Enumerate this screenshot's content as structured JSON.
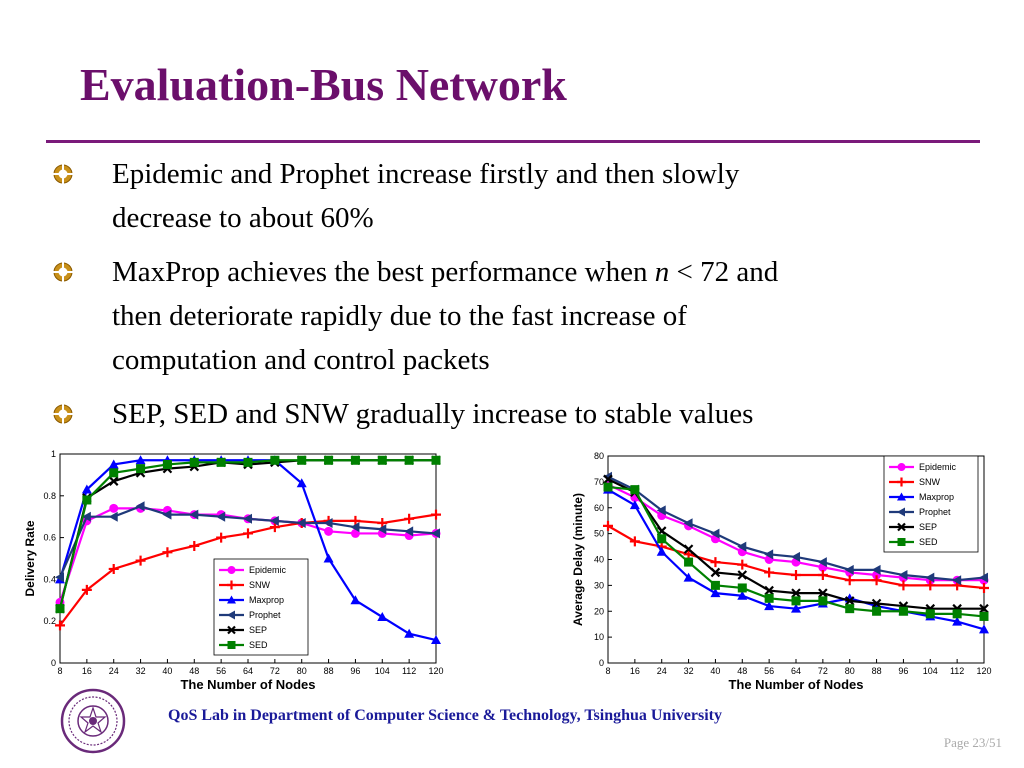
{
  "slide": {
    "title": "Evaluation-Bus Network",
    "bullets": [
      {
        "lines": [
          "Epidemic and Prophet increase firstly and then slowly",
          "decrease to about 60%"
        ]
      },
      {
        "line1_a": "MaxProp achieves the best performance when ",
        "line1_var": "n",
        "line1_b": " < 72 and",
        "lines_rest": [
          "then deteriorate rapidly due to the fast increase of",
          "computation and control packets"
        ]
      },
      {
        "lines": [
          "SEP, SED and SNW gradually increase to stable values"
        ]
      }
    ],
    "footer": "QoS Lab in Department of Computer Science & Technology, Tsinghua University",
    "page": "Page 23/51",
    "colors": {
      "title": "#6b0f6b",
      "rule": "#7a1a7a",
      "footer": "#1a1a99",
      "bullet_icon": "#b8860b"
    }
  },
  "chart_data": [
    {
      "type": "line",
      "xlabel": "The Number of Nodes",
      "ylabel": "Delivery Rate",
      "x": [
        8,
        16,
        24,
        32,
        40,
        48,
        56,
        64,
        72,
        80,
        88,
        96,
        104,
        112,
        120
      ],
      "xlim": [
        8,
        120
      ],
      "ylim": [
        0,
        1
      ],
      "yticks": [
        0,
        0.2,
        0.4,
        0.6,
        0.8,
        1
      ],
      "ytick_labels": [
        "0",
        "0.2",
        "0.4",
        "0.6",
        "0.8",
        "1"
      ],
      "legend": "lower-right",
      "grid": false,
      "series": [
        {
          "name": "Epidemic",
          "color": "#ff00ff",
          "marker": "circle",
          "values": [
            0.29,
            0.68,
            0.74,
            0.74,
            0.73,
            0.71,
            0.71,
            0.69,
            0.68,
            0.67,
            0.63,
            0.62,
            0.62,
            0.61,
            0.62
          ]
        },
        {
          "name": "SNW",
          "color": "#ff0000",
          "marker": "plus",
          "values": [
            0.18,
            0.35,
            0.45,
            0.49,
            0.53,
            0.56,
            0.6,
            0.62,
            0.65,
            0.67,
            0.68,
            0.68,
            0.67,
            0.69,
            0.71
          ]
        },
        {
          "name": "Maxprop",
          "color": "#0000ff",
          "marker": "triangle-up",
          "values": [
            0.4,
            0.83,
            0.95,
            0.97,
            0.97,
            0.97,
            0.97,
            0.97,
            0.97,
            0.86,
            0.5,
            0.3,
            0.22,
            0.14,
            0.11
          ]
        },
        {
          "name": "Prophet",
          "color": "#1f3a7a",
          "marker": "triangle-left",
          "values": [
            0.41,
            0.7,
            0.7,
            0.75,
            0.71,
            0.71,
            0.7,
            0.69,
            0.68,
            0.67,
            0.67,
            0.65,
            0.64,
            0.63,
            0.62
          ]
        },
        {
          "name": "SEP",
          "color": "#000000",
          "marker": "x",
          "values": [
            0.26,
            0.79,
            0.87,
            0.91,
            0.93,
            0.94,
            0.96,
            0.95,
            0.96,
            0.97,
            0.97,
            0.97,
            0.97,
            0.97,
            0.97
          ]
        },
        {
          "name": "SED",
          "color": "#008000",
          "marker": "square",
          "values": [
            0.26,
            0.78,
            0.91,
            0.93,
            0.95,
            0.96,
            0.96,
            0.96,
            0.97,
            0.97,
            0.97,
            0.97,
            0.97,
            0.97,
            0.97
          ]
        }
      ]
    },
    {
      "type": "line",
      "xlabel": "The Number of Nodes",
      "ylabel": "Average Delay (minute)",
      "x": [
        8,
        16,
        24,
        32,
        40,
        48,
        56,
        64,
        72,
        80,
        88,
        96,
        104,
        112,
        120
      ],
      "xlim": [
        8,
        120
      ],
      "ylim": [
        0,
        80
      ],
      "yticks": [
        0,
        10,
        20,
        30,
        40,
        50,
        60,
        70,
        80
      ],
      "ytick_labels": [
        "0",
        "10",
        "20",
        "30",
        "40",
        "50",
        "60",
        "70",
        "80"
      ],
      "legend": "top-right",
      "grid": false,
      "series": [
        {
          "name": "Epidemic",
          "color": "#ff00ff",
          "marker": "circle",
          "values": [
            69,
            64,
            57,
            53,
            48,
            43,
            40,
            39,
            37,
            35,
            34,
            33,
            32,
            32,
            32
          ]
        },
        {
          "name": "SNW",
          "color": "#ff0000",
          "marker": "plus",
          "values": [
            53,
            47,
            45,
            42,
            39,
            38,
            35,
            34,
            34,
            32,
            32,
            30,
            30,
            30,
            29
          ]
        },
        {
          "name": "Maxprop",
          "color": "#0000ff",
          "marker": "triangle-up",
          "values": [
            67,
            61,
            43,
            33,
            27,
            26,
            22,
            21,
            23,
            25,
            22,
            20,
            18,
            16,
            13
          ]
        },
        {
          "name": "Prophet",
          "color": "#1f3a7a",
          "marker": "triangle-left",
          "values": [
            72,
            67,
            59,
            54,
            50,
            45,
            42,
            41,
            39,
            36,
            36,
            34,
            33,
            32,
            33
          ]
        },
        {
          "name": "SEP",
          "color": "#000000",
          "marker": "x",
          "values": [
            71,
            66,
            51,
            44,
            35,
            34,
            28,
            27,
            27,
            24,
            23,
            22,
            21,
            21,
            21
          ]
        },
        {
          "name": "SED",
          "color": "#008000",
          "marker": "square",
          "values": [
            68,
            67,
            48,
            39,
            30,
            29,
            25,
            24,
            24,
            21,
            20,
            20,
            19,
            19,
            18
          ]
        }
      ]
    }
  ]
}
